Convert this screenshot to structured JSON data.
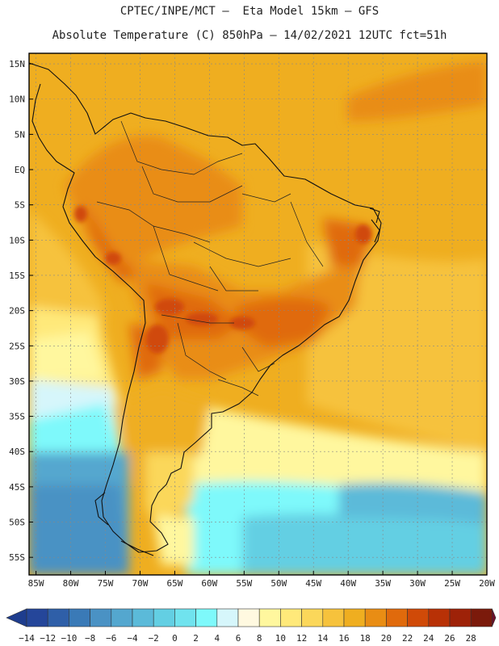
{
  "title": {
    "line1": "CPTEC/INPE/MCT –  Eta Model 15km – GFS",
    "line2": "Absolute Temperature (C) 850hPa – 14/02/2021 12UTC fct=51h"
  },
  "map": {
    "lat_labels": [
      "15N",
      "10N",
      "5N",
      "EQ",
      "5S",
      "10S",
      "15S",
      "20S",
      "25S",
      "30S",
      "35S",
      "40S",
      "45S",
      "50S",
      "55S"
    ],
    "lon_labels": [
      "85W",
      "80W",
      "75W",
      "70W",
      "65W",
      "60W",
      "55W",
      "50W",
      "45W",
      "40W",
      "35W",
      "30W",
      "25W",
      "20W"
    ],
    "lon_range": [
      -86,
      -20
    ],
    "lat_range": [
      -57.5,
      16.5
    ],
    "gridlines": "dashed"
  },
  "colorbar": {
    "labels": [
      "-14",
      "-12",
      "-10",
      "-8",
      "-6",
      "-4",
      "-2",
      "0",
      "2",
      "4",
      "6",
      "8",
      "10",
      "12",
      "14",
      "16",
      "18",
      "20",
      "22",
      "24",
      "26",
      "28"
    ],
    "colors": [
      "#25469a",
      "#2f5fa8",
      "#3a7ab7",
      "#4a92c4",
      "#54a7cf",
      "#5bbad9",
      "#63cfe3",
      "#70e3ee",
      "#7ef9fb",
      "#d6f6fb",
      "#fff9e0",
      "#fff79e",
      "#ffe97a",
      "#fbd75a",
      "#f6c23c",
      "#efae20",
      "#e98d14",
      "#e06a0c",
      "#d04a08",
      "#b83106",
      "#9e2208",
      "#7b1a0b"
    ],
    "under_color": "#1e3d8e",
    "over_color": "#6e0f2a"
  }
}
